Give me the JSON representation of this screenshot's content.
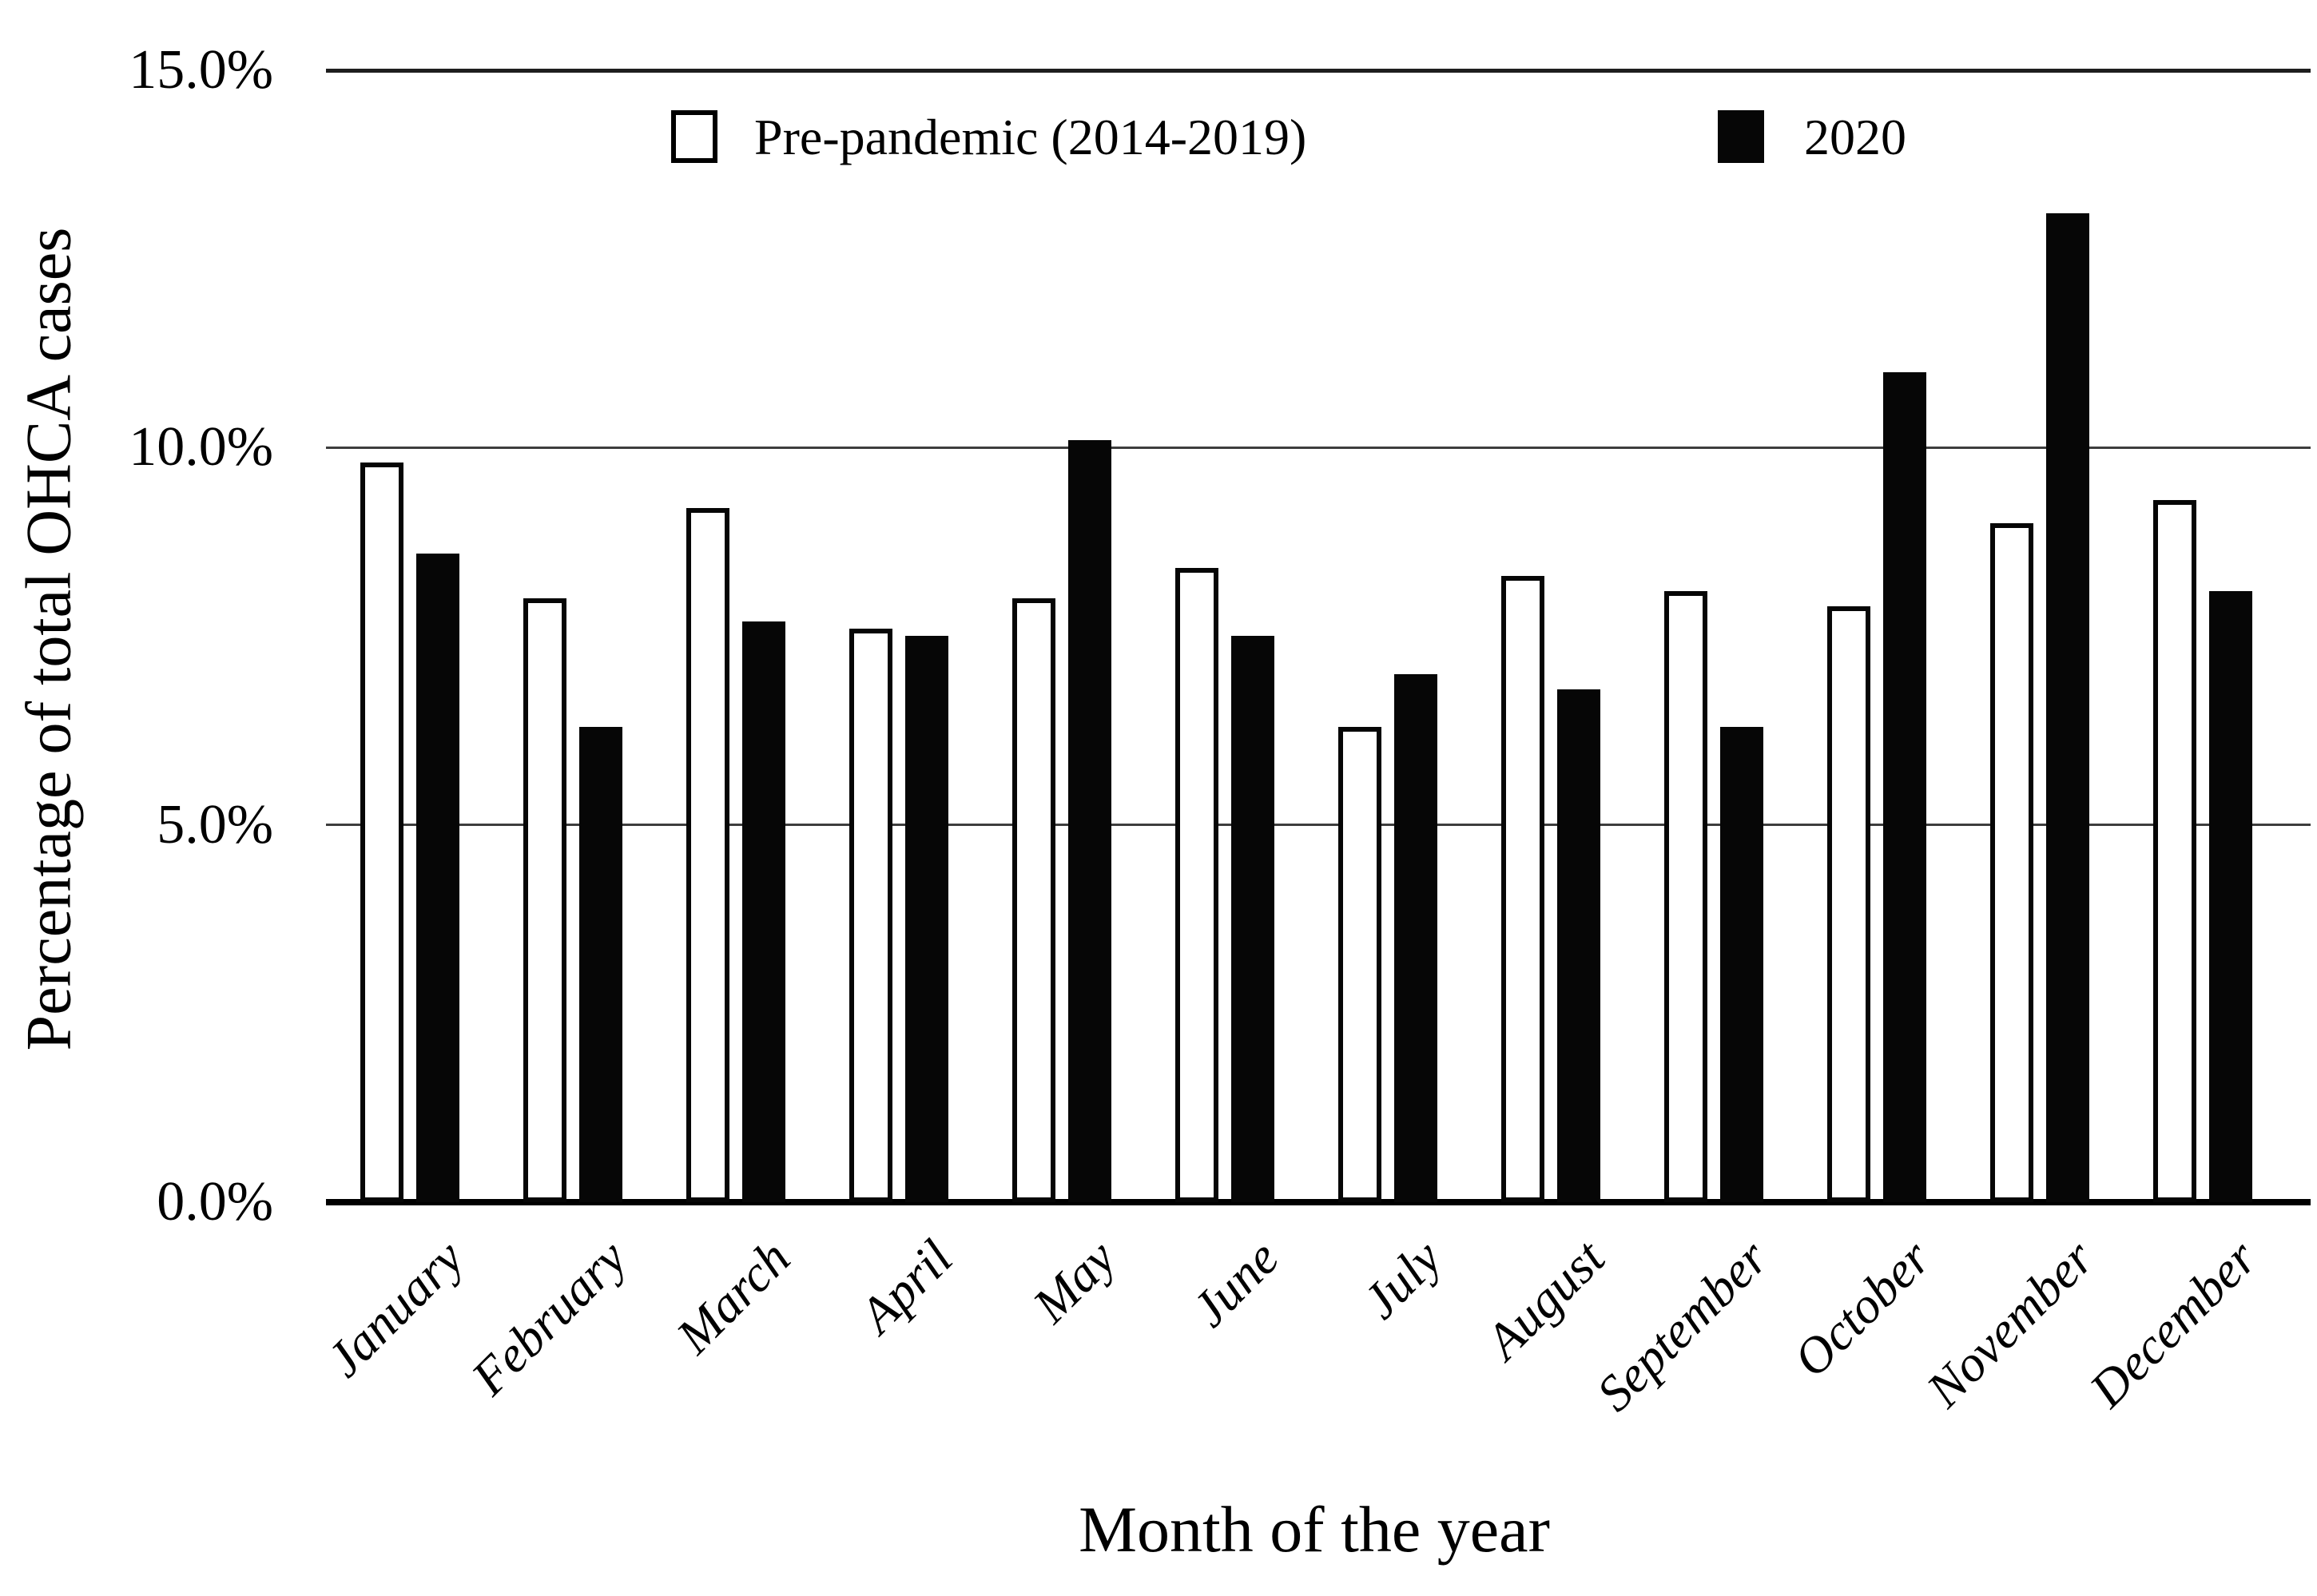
{
  "colors": {
    "foreground": "#000000",
    "background": "#ffffff",
    "gridline": "#3d3d3d",
    "bar_pre_pandemic_fill": "#ffffff",
    "bar_pre_pandemic_stroke": "#000000",
    "bar_2020_fill": "#060606"
  },
  "chart_data": {
    "type": "bar",
    "title": "",
    "xlabel": "Month of the year",
    "ylabel": "Percentage of total OHCA cases",
    "categories": [
      "January",
      "February",
      "March",
      "April",
      "May",
      "June",
      "July",
      "August",
      "September",
      "October",
      "November",
      "December"
    ],
    "series": [
      {
        "name": "Pre-pandemic (2014-2019)",
        "fill": "#ffffff",
        "stroke": "#000000",
        "values": [
          9.8,
          8.0,
          9.2,
          7.6,
          8.0,
          8.4,
          6.3,
          8.3,
          8.1,
          7.9,
          9.0,
          9.3
        ]
      },
      {
        "name": "2020",
        "fill": "#060606",
        "stroke": "#060606",
        "values": [
          8.6,
          6.3,
          7.7,
          7.5,
          10.1,
          7.5,
          7.0,
          6.8,
          6.3,
          11.0,
          13.1,
          8.1
        ]
      }
    ],
    "ylim": [
      0,
      15
    ],
    "yticks": [
      {
        "value": 0,
        "label": "0.0%"
      },
      {
        "value": 5,
        "label": "5.0%"
      },
      {
        "value": 10,
        "label": "10.0%"
      },
      {
        "value": 15,
        "label": "15.0%"
      }
    ],
    "grid": "horizontal",
    "legend_position": "top-inside",
    "value_unit": "percent of total OHCA cases"
  }
}
